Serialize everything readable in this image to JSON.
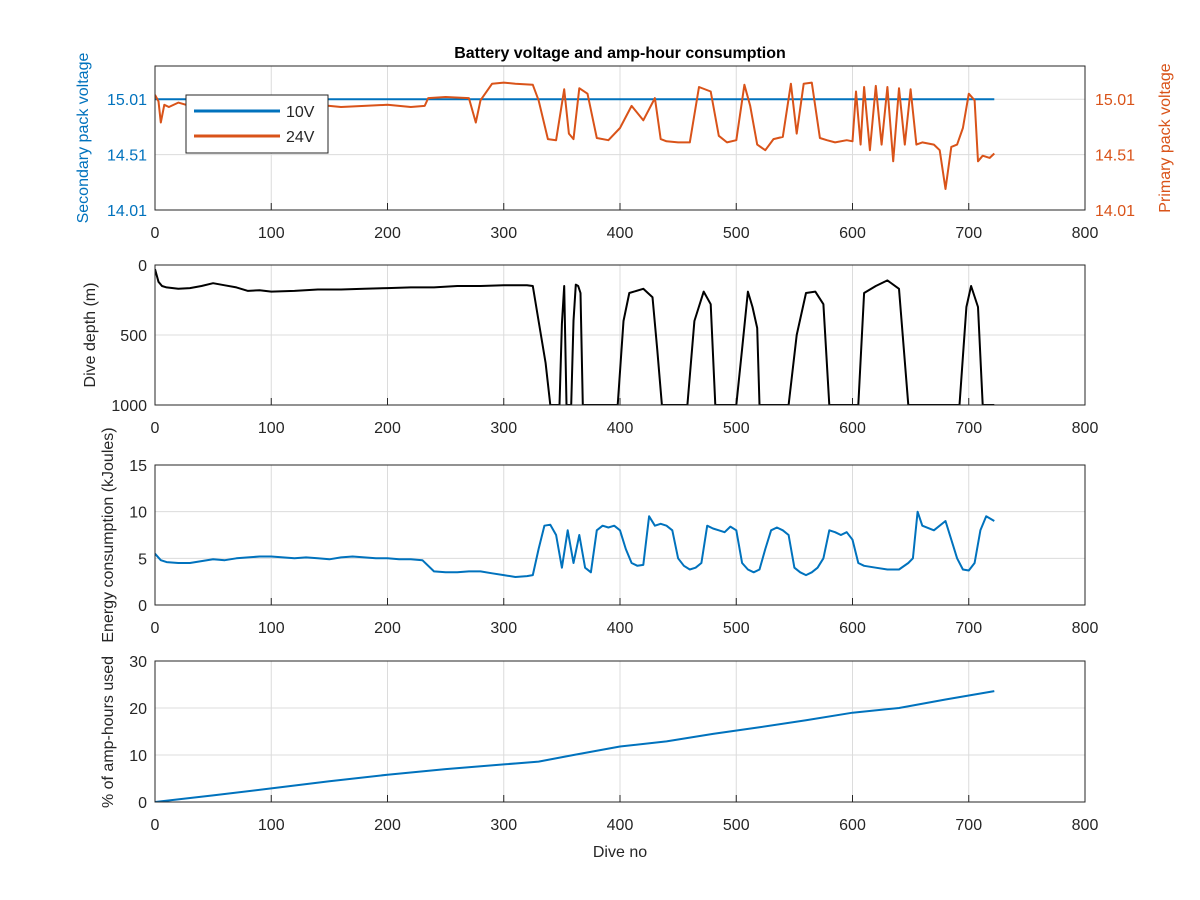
{
  "colors": {
    "blue": "#0072BD",
    "orange": "#D95319",
    "black": "#000000",
    "grid": "#dcdcdc",
    "axis": "#262626"
  },
  "chart_data": [
    {
      "type": "line",
      "title": "Battery voltage and amp-hour consumption",
      "ylabel": "Secondary pack voltage",
      "ylabel_right": "Primary pack voltage",
      "xlim": [
        0,
        800
      ],
      "ylim": [
        14.01,
        15.31
      ],
      "ylim_right": [
        14.01,
        15.31
      ],
      "xticks": [
        0,
        100,
        200,
        300,
        400,
        500,
        600,
        700,
        800
      ],
      "yticks": [
        14.01,
        14.51,
        15.01
      ],
      "ytick_labels": [
        "14.01",
        "14.51",
        "15.01"
      ],
      "yticks_right": [
        14.01,
        14.51,
        15.01
      ],
      "ytick_labels_right": [
        "14.01",
        "14.51",
        "15.01"
      ],
      "grid": true,
      "legend": "top-left",
      "series": [
        {
          "name": "10V",
          "axis": "left",
          "color": "#0072BD",
          "x": [
            0,
            722
          ],
          "y": [
            15.01,
            15.01
          ]
        },
        {
          "name": "24V",
          "axis": "right",
          "color": "#D95319",
          "x": [
            0,
            3,
            5,
            8,
            12,
            20,
            30,
            45,
            60,
            80,
            100,
            120,
            140,
            160,
            180,
            200,
            220,
            232,
            235,
            250,
            270,
            276,
            280,
            290,
            300,
            310,
            325,
            330,
            338,
            345,
            352,
            356,
            360,
            365,
            372,
            380,
            390,
            400,
            410,
            420,
            430,
            435,
            440,
            450,
            460,
            468,
            478,
            485,
            492,
            500,
            507,
            512,
            518,
            525,
            532,
            540,
            547,
            552,
            558,
            565,
            572,
            578,
            585,
            595,
            600,
            603,
            607,
            610,
            615,
            620,
            625,
            630,
            635,
            640,
            645,
            650,
            655,
            660,
            670,
            675,
            680,
            685,
            690,
            695,
            700,
            705,
            708,
            712,
            718,
            722
          ],
          "y": [
            15.05,
            14.99,
            14.8,
            14.96,
            14.94,
            14.98,
            14.95,
            14.97,
            14.96,
            14.95,
            14.96,
            14.95,
            14.96,
            14.94,
            14.95,
            14.96,
            14.94,
            14.95,
            15.02,
            15.03,
            15.02,
            14.8,
            15.0,
            15.15,
            15.16,
            15.15,
            15.14,
            15.0,
            14.65,
            14.64,
            15.1,
            14.7,
            14.65,
            15.11,
            15.06,
            14.66,
            14.64,
            14.75,
            14.95,
            14.82,
            15.02,
            14.65,
            14.63,
            14.62,
            14.62,
            15.12,
            15.08,
            14.68,
            14.62,
            14.64,
            15.14,
            14.95,
            14.6,
            14.55,
            14.65,
            14.67,
            15.15,
            14.7,
            15.15,
            15.16,
            14.66,
            14.64,
            14.62,
            14.64,
            14.63,
            15.08,
            14.6,
            15.12,
            14.55,
            15.13,
            14.6,
            15.12,
            14.45,
            15.11,
            14.6,
            15.1,
            14.6,
            14.62,
            14.6,
            14.55,
            14.2,
            14.58,
            14.6,
            14.75,
            15.06,
            15.0,
            14.45,
            14.5,
            14.48,
            14.52
          ]
        }
      ]
    },
    {
      "type": "line",
      "xlabel": "",
      "ylabel": "Dive depth (m)",
      "xlim": [
        0,
        800
      ],
      "ylim": [
        0,
        1000
      ],
      "y_reversed": true,
      "xticks": [
        0,
        100,
        200,
        300,
        400,
        500,
        600,
        700,
        800
      ],
      "yticks": [
        0,
        500,
        1000
      ],
      "grid": true,
      "series": [
        {
          "color": "#000000",
          "x": [
            0,
            3,
            6,
            10,
            20,
            30,
            40,
            50,
            60,
            70,
            80,
            90,
            100,
            120,
            140,
            160,
            180,
            200,
            220,
            240,
            260,
            280,
            300,
            320,
            325,
            330,
            336,
            340,
            344,
            346,
            348,
            350,
            352,
            354,
            356,
            358,
            360,
            362,
            364,
            366,
            368,
            370,
            372,
            376,
            380,
            390,
            398,
            403,
            408,
            420,
            428,
            432,
            436,
            452,
            458,
            464,
            472,
            478,
            482,
            484,
            500,
            505,
            510,
            514,
            518,
            520,
            522,
            530,
            545,
            552,
            560,
            568,
            575,
            580,
            600,
            605,
            610,
            620,
            630,
            640,
            648,
            652,
            656,
            680,
            690,
            692,
            698,
            702,
            708,
            712,
            715,
            722
          ],
          "y": [
            30,
            120,
            150,
            160,
            170,
            165,
            150,
            130,
            145,
            160,
            185,
            180,
            190,
            185,
            175,
            175,
            170,
            165,
            160,
            160,
            150,
            150,
            145,
            145,
            150,
            400,
            700,
            1000,
            1000,
            1000,
            1000,
            420,
            150,
            1000,
            1000,
            1000,
            400,
            140,
            150,
            200,
            1000,
            1000,
            1000,
            1000,
            1000,
            1000,
            1000,
            400,
            200,
            170,
            230,
            600,
            1000,
            1000,
            1000,
            400,
            190,
            280,
            1000,
            1000,
            1000,
            600,
            190,
            300,
            450,
            1000,
            1000,
            1000,
            1000,
            500,
            200,
            190,
            280,
            1000,
            1000,
            1000,
            200,
            150,
            110,
            170,
            1000,
            1000,
            1000,
            1000,
            1000,
            1000,
            300,
            150,
            300,
            1000,
            1000,
            1000
          ]
        }
      ]
    },
    {
      "type": "line",
      "ylabel": "Energy consumption (kJoules)",
      "xlim": [
        0,
        800
      ],
      "ylim": [
        0,
        15
      ],
      "xticks": [
        0,
        100,
        200,
        300,
        400,
        500,
        600,
        700,
        800
      ],
      "yticks": [
        0,
        5,
        10,
        15
      ],
      "grid": true,
      "series": [
        {
          "color": "#0072BD",
          "x": [
            0,
            5,
            10,
            20,
            30,
            40,
            50,
            60,
            70,
            80,
            90,
            100,
            110,
            120,
            130,
            140,
            150,
            160,
            170,
            180,
            190,
            200,
            210,
            220,
            230,
            240,
            250,
            260,
            270,
            280,
            290,
            300,
            310,
            320,
            325,
            330,
            335,
            340,
            345,
            350,
            355,
            360,
            365,
            370,
            375,
            380,
            385,
            390,
            395,
            400,
            405,
            410,
            415,
            420,
            425,
            430,
            435,
            440,
            445,
            450,
            455,
            460,
            465,
            470,
            475,
            480,
            485,
            490,
            495,
            500,
            505,
            510,
            515,
            520,
            525,
            530,
            535,
            540,
            545,
            550,
            555,
            560,
            565,
            570,
            575,
            580,
            585,
            590,
            595,
            600,
            605,
            610,
            620,
            630,
            640,
            648,
            652,
            656,
            660,
            670,
            680,
            690,
            695,
            700,
            705,
            710,
            715,
            722
          ],
          "y": [
            5.5,
            4.8,
            4.6,
            4.5,
            4.5,
            4.7,
            4.9,
            4.8,
            5.0,
            5.1,
            5.2,
            5.2,
            5.1,
            5.0,
            5.1,
            5.0,
            4.9,
            5.1,
            5.2,
            5.1,
            5.0,
            5.0,
            4.9,
            4.9,
            4.8,
            3.6,
            3.5,
            3.5,
            3.6,
            3.6,
            3.4,
            3.2,
            3.0,
            3.1,
            3.2,
            6.0,
            8.5,
            8.6,
            7.5,
            4.0,
            8.0,
            4.5,
            7.5,
            4.0,
            3.5,
            8.0,
            8.5,
            8.3,
            8.5,
            8.0,
            6.0,
            4.5,
            4.2,
            4.3,
            9.5,
            8.5,
            8.7,
            8.5,
            8.0,
            5.0,
            4.2,
            3.8,
            4.0,
            4.5,
            8.5,
            8.2,
            8.0,
            7.8,
            8.4,
            8.0,
            4.5,
            3.8,
            3.5,
            3.8,
            6.0,
            8.0,
            8.3,
            8.0,
            7.5,
            4.0,
            3.5,
            3.2,
            3.5,
            4.0,
            5.0,
            8.0,
            7.8,
            7.5,
            7.8,
            7.0,
            4.5,
            4.2,
            4.0,
            3.8,
            3.8,
            4.5,
            5.0,
            10.0,
            8.5,
            8.0,
            9.0,
            5.0,
            3.8,
            3.7,
            4.5,
            8.0,
            9.5,
            9.0
          ]
        }
      ]
    },
    {
      "type": "line",
      "xlabel": "Dive no",
      "ylabel": "% of amp-hours used",
      "xlim": [
        0,
        800
      ],
      "ylim": [
        0,
        30
      ],
      "xticks": [
        0,
        100,
        200,
        300,
        400,
        500,
        600,
        700,
        800
      ],
      "yticks": [
        0,
        10,
        20,
        30
      ],
      "grid": true,
      "series": [
        {
          "color": "#0072BD",
          "x": [
            0,
            50,
            100,
            150,
            200,
            250,
            300,
            330,
            360,
            400,
            440,
            480,
            520,
            560,
            600,
            640,
            680,
            722
          ],
          "y": [
            0,
            1.4,
            2.9,
            4.4,
            5.8,
            7.0,
            8.0,
            8.6,
            10.0,
            11.8,
            12.9,
            14.5,
            15.9,
            17.4,
            19.0,
            20.0,
            21.8,
            23.6
          ]
        }
      ]
    }
  ]
}
